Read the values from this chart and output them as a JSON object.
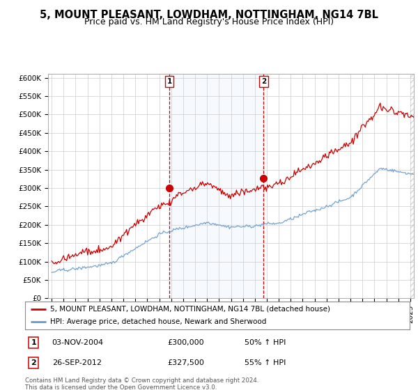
{
  "title": "5, MOUNT PLEASANT, LOWDHAM, NOTTINGHAM, NG14 7BL",
  "subtitle": "Price paid vs. HM Land Registry's House Price Index (HPI)",
  "ylabel_ticks": [
    "£0",
    "£50K",
    "£100K",
    "£150K",
    "£200K",
    "£250K",
    "£300K",
    "£350K",
    "£400K",
    "£450K",
    "£500K",
    "£550K",
    "£600K"
  ],
  "ytick_values": [
    0,
    50000,
    100000,
    150000,
    200000,
    250000,
    300000,
    350000,
    400000,
    450000,
    500000,
    550000,
    600000
  ],
  "ylim": [
    0,
    610000
  ],
  "xlim_start": 1994.7,
  "xlim_end": 2025.3,
  "sale1_x": 2004.84,
  "sale1_y": 300000,
  "sale1_label": "1",
  "sale2_x": 2012.73,
  "sale2_y": 327500,
  "sale2_label": "2",
  "legend_line1": "5, MOUNT PLEASANT, LOWDHAM, NOTTINGHAM, NG14 7BL (detached house)",
  "legend_line2": "HPI: Average price, detached house, Newark and Sherwood",
  "price_color": "#cc0000",
  "hpi_color": "#6699cc",
  "vline_color": "#cc0000",
  "shade_color": "#ddeeff",
  "bg_color": "#ffffff",
  "grid_color": "#cccccc",
  "title_fontsize": 10.5,
  "subtitle_fontsize": 9
}
